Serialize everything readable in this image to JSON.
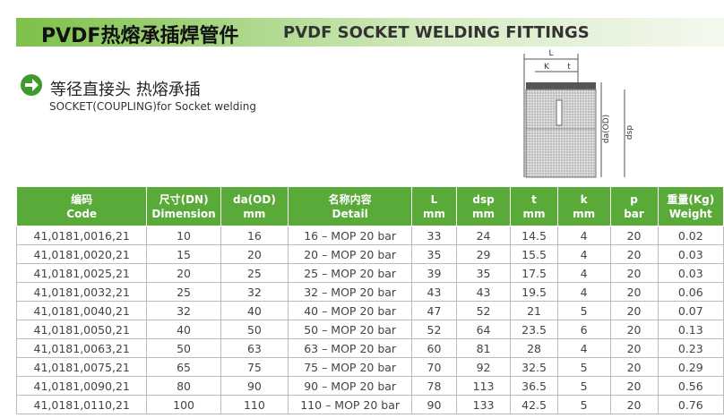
{
  "header": {
    "title_cn": "PVDF热熔承插焊管件",
    "title_en": "PVDF SOCKET WELDING FITTINGS"
  },
  "section": {
    "title": "等径直接头 热熔承插",
    "subtitle": "SOCKET(COUPLING)for Socket welding"
  },
  "diagram": {
    "labels": [
      "L",
      "K",
      "t",
      "da(OD)",
      "dsp"
    ]
  },
  "table": {
    "headers": [
      [
        "编码",
        "Code"
      ],
      [
        "尺寸(DN)",
        "Dimension"
      ],
      [
        "da(OD)",
        "mm"
      ],
      [
        "名称内容",
        "Detail"
      ],
      [
        "L",
        "mm"
      ],
      [
        "dsp",
        "mm"
      ],
      [
        "t",
        "mm"
      ],
      [
        "k",
        "mm"
      ],
      [
        "p",
        "bar"
      ],
      [
        "重量(Kg)",
        "Weight"
      ]
    ],
    "rows": [
      [
        "41,0181,0016,21",
        "10",
        "16",
        "16 – MOP 20 bar",
        "33",
        "24",
        "14.5",
        "4",
        "20",
        "0.02"
      ],
      [
        "41,0181,0020,21",
        "15",
        "20",
        "20 – MOP 20 bar",
        "35",
        "29",
        "15.5",
        "4",
        "20",
        "0.03"
      ],
      [
        "41,0181,0025,21",
        "20",
        "25",
        "25 – MOP 20 bar",
        "39",
        "35",
        "17.5",
        "4",
        "20",
        "0.03"
      ],
      [
        "41,0181,0032,21",
        "25",
        "32",
        "32 – MOP 20 bar",
        "43",
        "43",
        "19.5",
        "4",
        "20",
        "0.06"
      ],
      [
        "41,0181,0040,21",
        "32",
        "40",
        "40 – MOP 20 bar",
        "47",
        "52",
        "21",
        "5",
        "20",
        "0.07"
      ],
      [
        "41,0181,0050,21",
        "40",
        "50",
        "50 – MOP 20 bar",
        "52",
        "64",
        "23.5",
        "6",
        "20",
        "0.13"
      ],
      [
        "41,0181,0063,21",
        "50",
        "63",
        "63 – MOP 20 bar",
        "60",
        "81",
        "28",
        "4",
        "20",
        "0.23"
      ],
      [
        "41,0181,0075,21",
        "65",
        "75",
        "75 – MOP 20 bar",
        "70",
        "92",
        "32.5",
        "5",
        "20",
        "0.29"
      ],
      [
        "41,0181,0090,21",
        "80",
        "90",
        "90 – MOP 20 bar",
        "78",
        "113",
        "36.5",
        "5",
        "20",
        "0.56"
      ],
      [
        "41,0181,0110,21",
        "100",
        "110",
        "110 – MOP 20 bar",
        "90",
        "133",
        "42.5",
        "5",
        "20",
        "0.76"
      ]
    ]
  }
}
